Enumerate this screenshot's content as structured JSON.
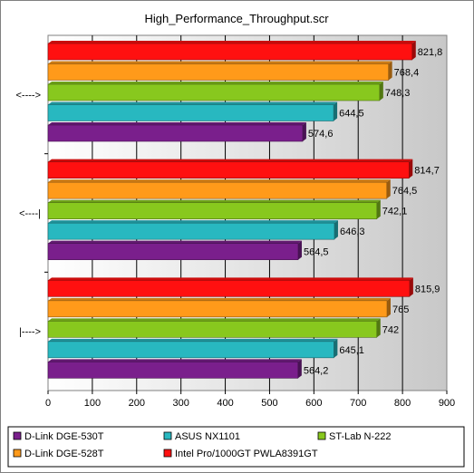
{
  "chart_data": {
    "type": "bar",
    "orientation": "horizontal",
    "title": "High_Performance_Throughput.scr",
    "categories": [
      "<---->",
      "<----|",
      "|---->"
    ],
    "series": [
      {
        "name": "D-Link DGE-530T",
        "color": "#7a1f8c",
        "values": [
          574.6,
          564.5,
          564.2
        ]
      },
      {
        "name": "ASUS NX1101",
        "color": "#28b8c0",
        "values": [
          644.5,
          646.3,
          645.1
        ]
      },
      {
        "name": "ST-Lab N-222",
        "color": "#88c81e",
        "values": [
          748.3,
          742.1,
          742
        ]
      },
      {
        "name": "D-Link DGE-528T",
        "color": "#ff9a1a",
        "values": [
          768.4,
          764.5,
          765
        ]
      },
      {
        "name": "Intel Pro/1000GT PWLA8391GT",
        "color": "#ff1010",
        "values": [
          821.8,
          814.7,
          815.9
        ]
      }
    ],
    "data_labels": [
      [
        "574,6",
        "644,5",
        "748,3",
        "768,4",
        "821,8"
      ],
      [
        "564,5",
        "646,3",
        "742,1",
        "764,5",
        "814,7"
      ],
      [
        "564,2",
        "645,1",
        "742",
        "765",
        "815,9"
      ]
    ],
    "xlim": [
      0,
      900
    ],
    "xticks": [
      0,
      100,
      200,
      300,
      400,
      500,
      600,
      700,
      800,
      900
    ],
    "xtick_labels": [
      "0",
      "100",
      "200",
      "300",
      "400",
      "500",
      "600",
      "700",
      "800",
      "900"
    ],
    "grid": true,
    "legend": "bottom",
    "legend_order": [
      0,
      1,
      2,
      3,
      4
    ]
  }
}
